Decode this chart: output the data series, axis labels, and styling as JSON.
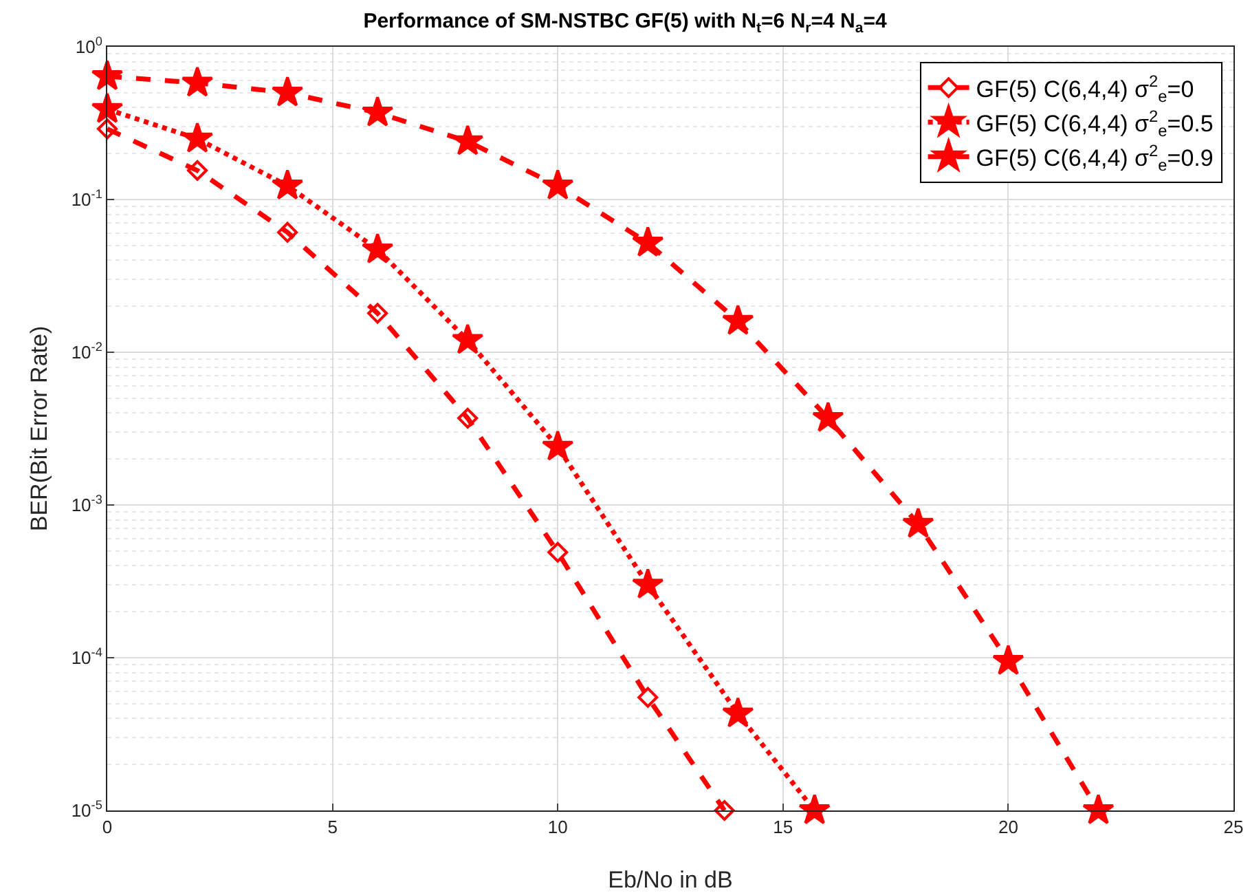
{
  "chart_data": {
    "type": "line",
    "title": "Performance of SM-NSTBC GF(5) with N$_{t}$=6 N$_{r}$=4 N$_{a}$=4",
    "xlabel": "Eb/No in dB",
    "ylabel": "BER(Bit Error Rate)",
    "log": "y",
    "grid": true,
    "legend": "top right",
    "xlim": [
      0,
      25
    ],
    "xticks": [
      0,
      5,
      10,
      15,
      20,
      25
    ],
    "ylim": [
      1e-05,
      1
    ],
    "yticks": [
      {
        "value": 1e-05,
        "label": "10$^{-5}$"
      },
      {
        "value": 0.0001,
        "label": "10$^{-4}$"
      },
      {
        "value": 0.001,
        "label": "10$^{-3}$"
      },
      {
        "value": 0.01,
        "label": "10$^{-2}$"
      },
      {
        "value": 0.1,
        "label": "10$^{-1}$"
      },
      {
        "value": 1,
        "label": "10$^{0}$"
      }
    ],
    "series": [
      {
        "name": "GF(5) C(6,4,4) σ$^{2}$$_{e}$=0",
        "color": "#ff0000",
        "marker": "diamond",
        "line_style": "dashed",
        "x": [
          0,
          2,
          4,
          6,
          8,
          10,
          12,
          13.7
        ],
        "values": [
          0.29,
          0.155,
          0.061,
          0.018,
          0.0037,
          0.00049,
          5.5e-05,
          1e-05
        ]
      },
      {
        "name": "GF(5) C(6,4,4) σ$^{2}$$_{e}$=0.5",
        "color": "#ff0000",
        "marker": "star",
        "line_style": "dotted",
        "x": [
          0,
          2,
          4,
          6,
          8,
          10,
          12,
          14,
          15.7
        ],
        "values": [
          0.39,
          0.25,
          0.123,
          0.047,
          0.012,
          0.0024,
          0.0003,
          4.3e-05,
          1e-05
        ]
      },
      {
        "name": "GF(5) C(6,4,4) σ$^{2}$$_{e}$=0.9",
        "color": "#ff0000",
        "marker": "star",
        "line_style": "dashed",
        "x": [
          0,
          2,
          4,
          6,
          8,
          10,
          12,
          14,
          16,
          18,
          20,
          22
        ],
        "values": [
          0.64,
          0.58,
          0.5,
          0.37,
          0.24,
          0.123,
          0.052,
          0.016,
          0.0037,
          0.00075,
          9.5e-05,
          1e-05
        ]
      }
    ]
  }
}
